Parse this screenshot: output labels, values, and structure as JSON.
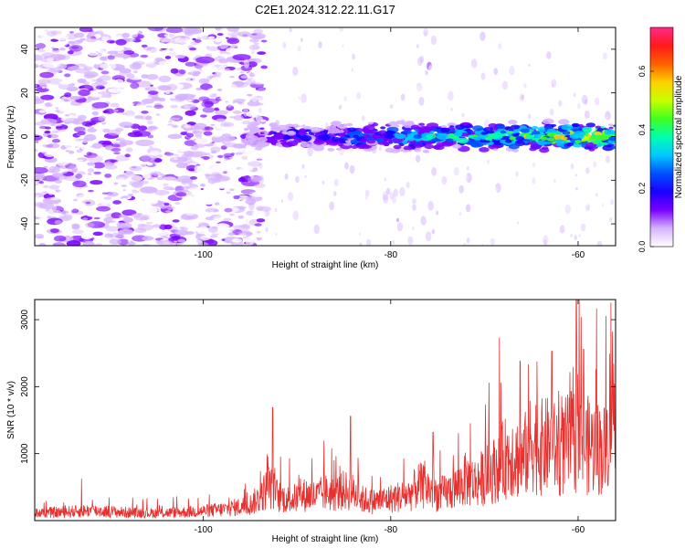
{
  "figure_title": "C2E1.2024.312.22.11.G17",
  "colorbar": {
    "label": "Normalized spectral amplitude",
    "ticks": [
      "0.0",
      "0.2",
      "0.4",
      "0.6"
    ],
    "colors": [
      "#ffffff",
      "#d6b3ff",
      "#7a00ff",
      "#1a00ff",
      "#0050ff",
      "#00c8ff",
      "#00ffb0",
      "#40ff20",
      "#c8ff00",
      "#ffd000",
      "#ff6000",
      "#ff1a1a",
      "#ff2a8a"
    ]
  },
  "chart_data": [
    {
      "type": "heatmap",
      "xlabel": "Height of straight line (km)",
      "ylabel": "Frequency (Hz)",
      "xlim": [
        -118,
        -56
      ],
      "ylim": [
        -50,
        50
      ],
      "xticks": [
        "-100",
        "-80",
        "-60"
      ],
      "xtick_values": [
        -100,
        -80,
        -60
      ],
      "yticks": [
        "-40",
        "-20",
        "0",
        "20",
        "40"
      ],
      "ytick_values": [
        -40,
        -20,
        0,
        20,
        40
      ],
      "noise_region_end_x": -95.5,
      "signal_band": {
        "x_start": -95.5,
        "x_end": -56,
        "center_freq": 0,
        "half_width_hz": 4,
        "amplitude_start": 0.15,
        "amplitude_peak": 0.65,
        "peak_x": -66,
        "amplitude_range": [
          0,
          0.75
        ]
      }
    },
    {
      "type": "line",
      "xlabel": "Height of straight line (km)",
      "ylabel": "SNR (10 * v/v)",
      "xlim": [
        -118,
        -56
      ],
      "ylim": [
        0,
        3300
      ],
      "xticks": [
        "-100",
        "-80",
        "-60"
      ],
      "xtick_values": [
        -100,
        -80,
        -60
      ],
      "yticks": [
        "1000",
        "2000",
        "3000"
      ],
      "ytick_values": [
        1000,
        2000,
        3000
      ],
      "line_color": "#e8312f",
      "series": [
        {
          "x": [
            -118,
            -115,
            -112,
            -110,
            -108,
            -105,
            -102,
            -100,
            -98,
            -96,
            -95,
            -94,
            -93,
            -92,
            -91,
            -90,
            -89,
            -88,
            -87,
            -86,
            -85,
            -84,
            -83,
            -82,
            -81,
            -80,
            -79,
            -78,
            -77,
            -76,
            -75,
            -74,
            -73,
            -72,
            -71,
            -70,
            -69,
            -68,
            -67,
            -66,
            -65,
            -64,
            -63,
            -62,
            -61,
            -60,
            -59,
            -58,
            -57,
            -56.5,
            -56
          ],
          "y": [
            150,
            170,
            200,
            180,
            160,
            150,
            170,
            190,
            220,
            280,
            320,
            450,
            700,
            480,
            420,
            450,
            520,
            480,
            560,
            520,
            600,
            560,
            420,
            380,
            400,
            440,
            480,
            520,
            700,
            640,
            520,
            560,
            650,
            820,
            760,
            880,
            1000,
            1200,
            1350,
            1150,
            1600,
            1450,
            1500,
            1350,
            1550,
            1600,
            1500,
            1450,
            1400,
            2400,
            2600
          ],
          "spikes": [
            {
              "x": -113,
              "y": 620
            },
            {
              "x": -92.6,
              "y": 1690
            },
            {
              "x": -84.3,
              "y": 1560
            },
            {
              "x": -75.5,
              "y": 1320
            },
            {
              "x": -71.5,
              "y": 1450
            },
            {
              "x": -68.4,
              "y": 2730
            },
            {
              "x": -66.2,
              "y": 2380
            },
            {
              "x": -65.3,
              "y": 2330
            },
            {
              "x": -62.8,
              "y": 2530
            },
            {
              "x": -60.2,
              "y": 3300
            },
            {
              "x": -59.4,
              "y": 2560
            },
            {
              "x": -56.5,
              "y": 3250
            }
          ]
        }
      ]
    }
  ]
}
